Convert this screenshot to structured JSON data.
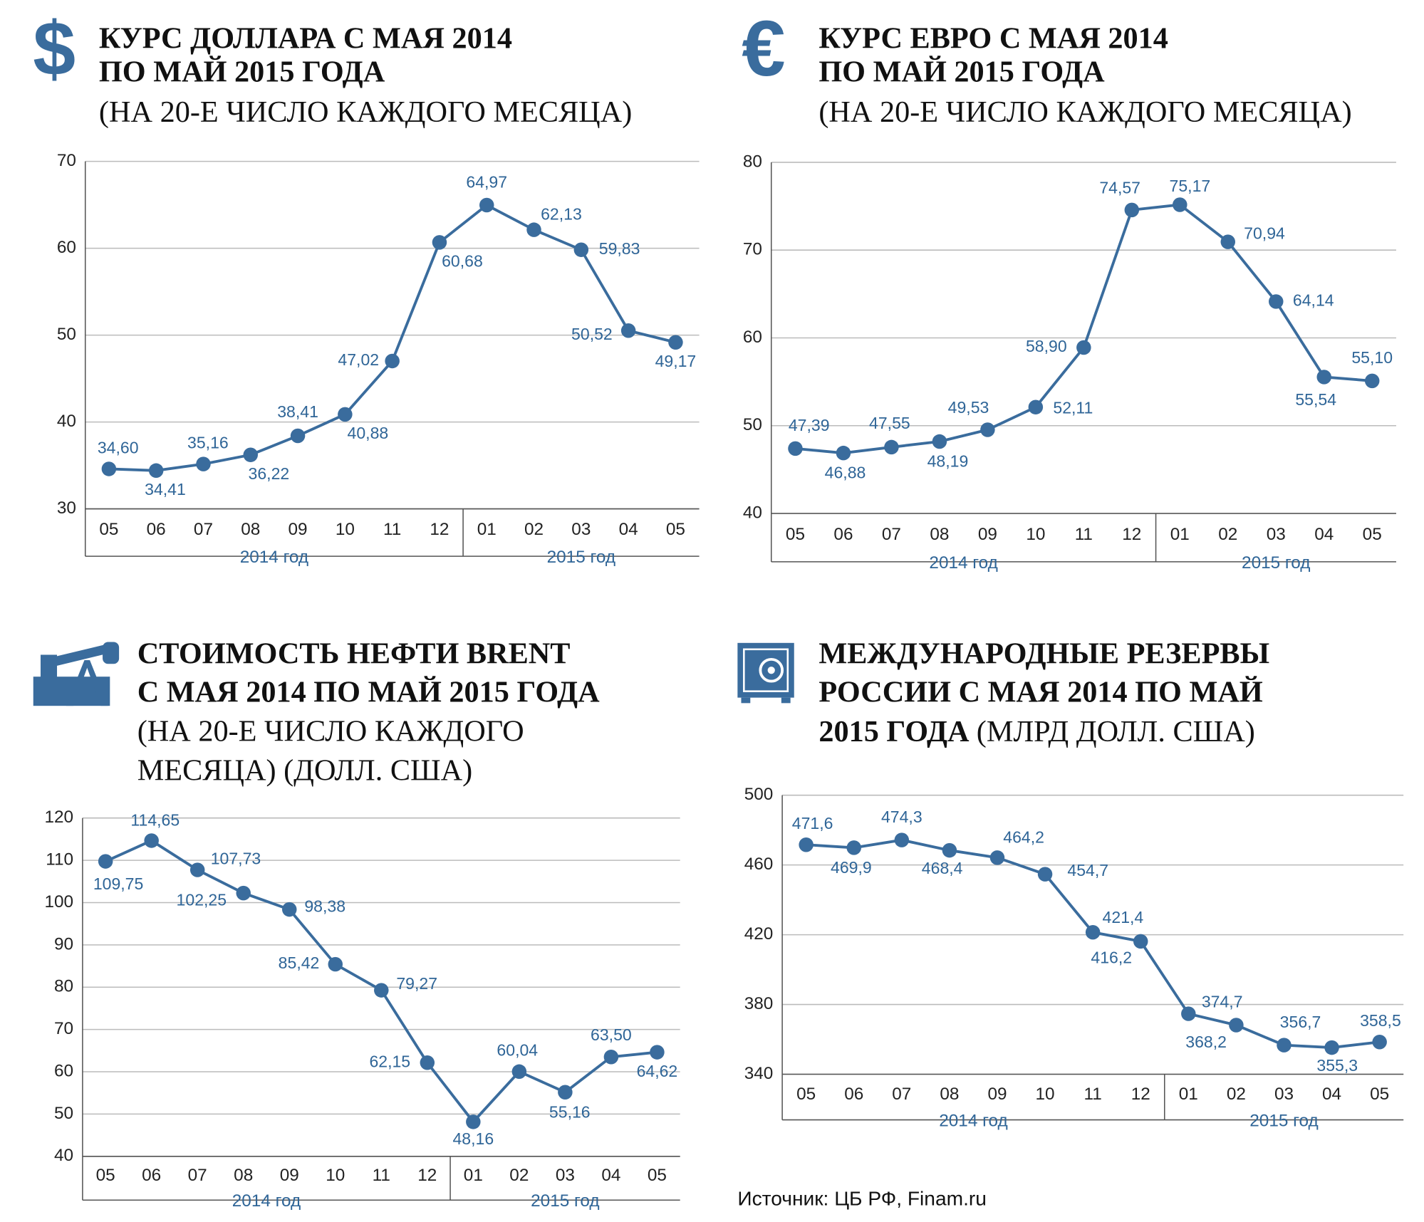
{
  "chart_data": [
    {
      "type": "line",
      "icon": "$",
      "title": [
        "КУРС ДОЛЛАРА С МАЯ 2014",
        "ПО МАЙ 2015 ГОДА"
      ],
      "subtitle": [
        "(НА 20-Е ЧИСЛО КАЖДОГО МЕСЯЦА)"
      ],
      "categories": [
        "05",
        "06",
        "07",
        "08",
        "09",
        "10",
        "11",
        "12",
        "01",
        "02",
        "03",
        "04",
        "05"
      ],
      "groups": [
        "2014 год",
        "2015 год"
      ],
      "series": [
        {
          "color": "#3a6c9d",
          "values": [
            34.6,
            34.41,
            35.16,
            36.22,
            38.41,
            40.88,
            47.02,
            60.68,
            64.97,
            62.13,
            59.83,
            50.52,
            49.17
          ],
          "value_labels": [
            "34,60",
            "34,41",
            "35,16",
            "36,22",
            "38,41",
            "40,88",
            "47,02",
            "60,68",
            "64,97",
            "62,13",
            "59,83",
            "50,52",
            "49,17"
          ]
        }
      ],
      "ylim": [
        30,
        70
      ],
      "yticks": [
        30,
        40,
        50,
        60,
        70
      ],
      "grid": true
    },
    {
      "type": "line",
      "icon": "€",
      "title": [
        "КУРС ЕВРО С МАЯ 2014",
        "ПО МАЙ 2015 ГОДА"
      ],
      "subtitle": [
        "(НА 20-Е ЧИСЛО КАЖДОГО МЕСЯЦА)"
      ],
      "categories": [
        "05",
        "06",
        "07",
        "08",
        "09",
        "10",
        "11",
        "12",
        "01",
        "02",
        "03",
        "04",
        "05"
      ],
      "groups": [
        "2014 год",
        "2015 год"
      ],
      "series": [
        {
          "color": "#3a6c9d",
          "values": [
            47.39,
            46.88,
            47.55,
            48.19,
            49.53,
            52.11,
            58.9,
            74.57,
            75.17,
            70.94,
            64.14,
            55.54,
            55.1
          ],
          "value_labels": [
            "47,39",
            "46,88",
            "47,55",
            "48,19",
            "49,53",
            "52,11",
            "58,90",
            "74,57",
            "75,17",
            "70,94",
            "64,14",
            "55,54",
            "55,10"
          ]
        }
      ],
      "ylim": [
        40,
        80
      ],
      "yticks": [
        40,
        50,
        60,
        70,
        80
      ],
      "grid": true
    },
    {
      "type": "line",
      "title": [
        "СТОИМОСТЬ НЕФТИ BRENT",
        "С МАЯ 2014 ПО МАЙ 2015 ГОДА"
      ],
      "subtitle": [
        "(НА 20-Е ЧИСЛО КАЖДОГО",
        "МЕСЯЦА) (ДОЛЛ. США)"
      ],
      "categories": [
        "05",
        "06",
        "07",
        "08",
        "09",
        "10",
        "11",
        "12",
        "01",
        "02",
        "03",
        "04",
        "05"
      ],
      "groups": [
        "2014 год",
        "2015 год"
      ],
      "series": [
        {
          "color": "#3a6c9d",
          "values": [
            109.75,
            114.65,
            107.73,
            102.25,
            98.38,
            85.42,
            79.27,
            62.15,
            48.16,
            60.04,
            55.16,
            63.5,
            64.62
          ],
          "value_labels": [
            "109,75",
            "114,65",
            "107,73",
            "102,25",
            "98,38",
            "85,42",
            "79,27",
            "62,15",
            "48,16",
            "60,04",
            "55,16",
            "63,50",
            "64,62"
          ]
        }
      ],
      "ylim": [
        40,
        120
      ],
      "yticks": [
        40,
        50,
        60,
        70,
        80,
        90,
        100,
        110,
        120
      ],
      "grid": true
    },
    {
      "type": "line",
      "title": [
        "МЕЖДУНАРОДНЫЕ РЕЗЕРВЫ",
        "РОССИИ С МАЯ 2014 ПО МАЙ",
        "2015 ГОДА"
      ],
      "subtitle": [
        "(МЛРД ДОЛЛ. США)"
      ],
      "categories": [
        "05",
        "06",
        "07",
        "08",
        "09",
        "10",
        "11",
        "12",
        "01",
        "02",
        "03",
        "04",
        "05"
      ],
      "groups": [
        "2014 год",
        "2015 год"
      ],
      "series": [
        {
          "color": "#3a6c9d",
          "values": [
            471.6,
            469.9,
            474.3,
            468.4,
            464.2,
            454.7,
            421.4,
            416.2,
            374.7,
            368.2,
            356.7,
            355.3,
            358.5
          ],
          "value_labels": [
            "471,6",
            "469,9",
            "474,3",
            "468,4",
            "464,2",
            "454,7",
            "421,4",
            "416,2",
            "374,7",
            "368,2",
            "356,7",
            "355,3",
            "358,5"
          ]
        }
      ],
      "ylim": [
        340,
        500
      ],
      "yticks": [
        340,
        380,
        420,
        460,
        500
      ],
      "grid": true
    }
  ],
  "source": "Источник: ЦБ РФ, Finam.ru"
}
